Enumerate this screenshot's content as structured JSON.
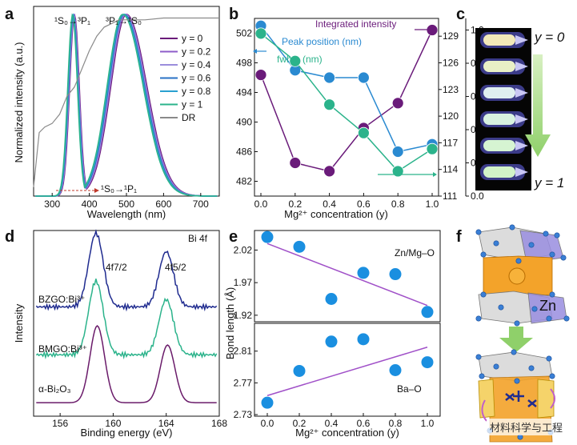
{
  "panels": {
    "a": "a",
    "b": "b",
    "c": "c",
    "d": "d",
    "e": "e",
    "f": "f"
  },
  "colors": {
    "y0": "#6a1b7a",
    "y02": "#8e5cc9",
    "y04": "#9b8ddc",
    "y06": "#2a72c5",
    "y08": "#2aa0d0",
    "y1": "#2bb38b",
    "dr": "#8a8a8a",
    "b_int": "#6a1b7a",
    "b_peak": "#2a8ad1",
    "b_fwhm": "#2bb38b",
    "e_pt": "#1a8fe0",
    "e_line": "#a050c8",
    "d_bzgo": "#1f2b8f",
    "d_bmgo": "#2bb38b",
    "d_bi2o3": "#6a1b6a"
  },
  "watermark": "材料科学与工程",
  "chart_data": [
    {
      "panel": "a",
      "type": "line",
      "xlabel": "Wavelength (nm)",
      "ylabel": "Normalized intensity (a.u.)",
      "xlim": [
        250,
        750
      ],
      "xticks": [
        300,
        400,
        500,
        600,
        700
      ],
      "legend": [
        "y = 0",
        "y = 0.2",
        "y = 0.4",
        "y = 0.6",
        "y = 0.8",
        "y = 1",
        "DR"
      ],
      "legend_position": "right",
      "series": [
        {
          "name": "y = 0",
          "exc_peak": 360,
          "em_peak": 500
        },
        {
          "name": "y = 0.2",
          "exc_peak": 359,
          "em_peak": 498
        },
        {
          "name": "y = 0.4",
          "exc_peak": 358,
          "em_peak": 496
        },
        {
          "name": "y = 0.6",
          "exc_peak": 357,
          "em_peak": 494
        },
        {
          "name": "y = 0.8",
          "exc_peak": 356,
          "em_peak": 492
        },
        {
          "name": "y = 1",
          "exc_peak": 355,
          "em_peak": 490
        },
        {
          "name": "DR",
          "x": [
            250,
            265,
            280,
            300,
            320,
            340,
            360,
            380,
            400,
            420,
            440,
            460,
            480,
            500,
            550,
            600,
            650,
            700,
            750
          ],
          "y": [
            0.05,
            0.35,
            0.38,
            0.4,
            0.45,
            0.55,
            0.6,
            0.7,
            0.8,
            0.88,
            0.93,
            0.95,
            0.97,
            0.97,
            0.97,
            0.98,
            0.98,
            0.98,
            0.98
          ]
        }
      ],
      "annotations": {
        "exc": "¹S₀→³P₁",
        "em": "³P₁→¹S₀",
        "abs": "¹S₀→¹P₁"
      }
    },
    {
      "panel": "b",
      "type": "scatter",
      "xlabel": "Mg²⁺ concentration (y)",
      "x": [
        0,
        0.2,
        0.4,
        0.6,
        0.8,
        1.0
      ],
      "xticks": [
        "0.0",
        "0.2",
        "0.4",
        "0.6",
        "0.8",
        "1.0"
      ],
      "left_axis": {
        "ylim": [
          480,
          504
        ],
        "ticks": [
          482,
          486,
          490,
          494,
          498,
          502
        ]
      },
      "mid_axis": {
        "ylim": [
          111,
          131
        ],
        "ticks": [
          111,
          114,
          117,
          120,
          123,
          126,
          129
        ]
      },
      "right_axis": {
        "ylim": [
          0,
          1.07
        ],
        "ticks": [
          "0.0",
          "0.2",
          "0.4",
          "0.6",
          "0.8",
          "1.0"
        ]
      },
      "series": [
        {
          "name": "Integrated intensity",
          "axis": "right",
          "values": [
            0.73,
            0.2,
            0.15,
            0.41,
            0.56,
            1.0
          ]
        },
        {
          "name": "Peak position (nm)",
          "axis": "left",
          "values": [
            503,
            497,
            496,
            496,
            486,
            487
          ]
        },
        {
          "name": "fwhm (nm)",
          "axis": "mid",
          "values": [
            129.3,
            126.2,
            121.3,
            118.1,
            113.8,
            116.3
          ]
        }
      ]
    },
    {
      "panel": "d",
      "type": "line",
      "xlabel": "Binding energy (eV)",
      "ylabel": "Intensity",
      "xlim": [
        154,
        168
      ],
      "xticks": [
        156,
        160,
        164,
        168
      ],
      "title": "Bi 4f",
      "peaks": [
        "4f7/2",
        "4f5/2"
      ],
      "series": [
        {
          "name": "BZGO:Bi³⁺",
          "peak1": 158.7,
          "peak2": 164.0
        },
        {
          "name": "BMGO:Bi³⁺",
          "peak1": 158.7,
          "peak2": 164.0
        },
        {
          "name": "α-Bi₂O₃",
          "peak1": 158.8,
          "peak2": 164.1
        }
      ]
    },
    {
      "panel": "e",
      "type": "scatter",
      "xlabel": "Mg²⁺ concentration (y)",
      "ylabel": "Bond length (Å)",
      "x": [
        0,
        0.2,
        0.4,
        0.6,
        0.8,
        1.0
      ],
      "xticks": [
        "0.0",
        "0.2",
        "0.4",
        "0.6",
        "0.8",
        "1.0"
      ],
      "subplots": [
        {
          "label": "Zn/Mg–O",
          "ylim": [
            1.91,
            2.05
          ],
          "ticks": [
            "1.92",
            "1.97",
            "2.02"
          ],
          "values": [
            2.04,
            2.025,
            1.945,
            1.985,
            1.983,
            1.925
          ],
          "fit": [
            2.03,
            1.935
          ]
        },
        {
          "label": "Ba–O",
          "ylim": [
            2.728,
            2.845
          ],
          "ticks": [
            "2.73",
            "2.77",
            "2.81"
          ],
          "values": [
            2.745,
            2.785,
            2.822,
            2.825,
            2.786,
            2.796
          ],
          "fit": [
            2.754,
            2.815
          ]
        }
      ]
    }
  ],
  "panel_c": {
    "top": "y = 0",
    "bottom": "y = 1"
  },
  "panel_f": {
    "label": "Zn"
  }
}
